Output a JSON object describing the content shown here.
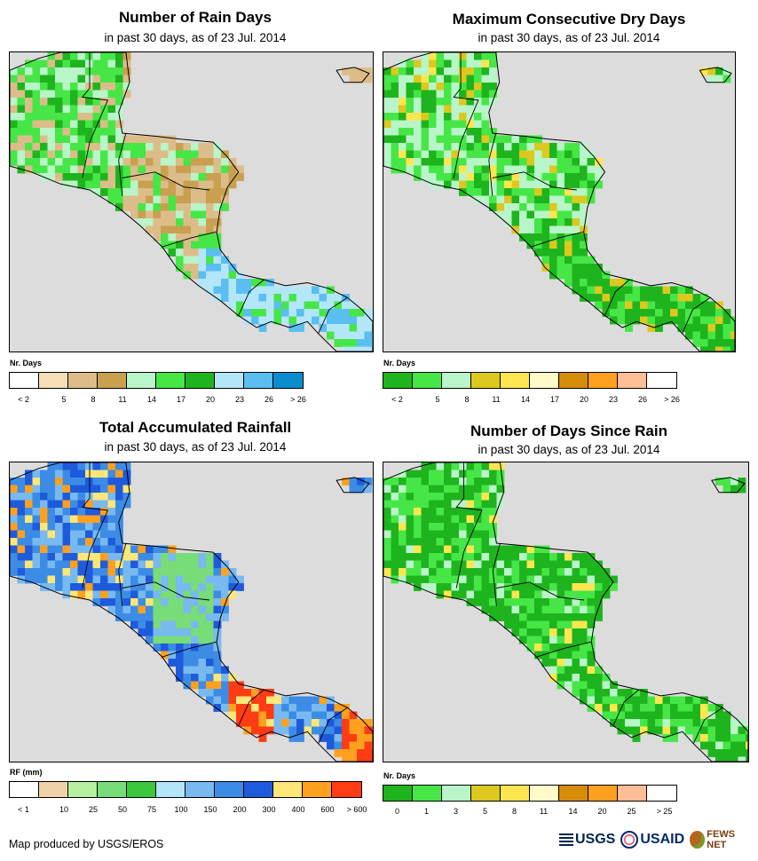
{
  "panels": [
    {
      "id": "rain_days",
      "title": "Number of Rain Days",
      "subtitle": "in past 30 days, as of 23 Jul. 2014",
      "legend_title": "Nr. Days",
      "legend_colors": [
        "#ffffff",
        "#f5deb8",
        "#dcbd8a",
        "#c8a050",
        "#b8f5c8",
        "#46e646",
        "#1eb41e",
        "#b4e6fa",
        "#5abef0",
        "#0a8ccd"
      ],
      "legend_labels": [
        "< 2",
        "5",
        "8",
        "11",
        "14",
        "17",
        "20",
        "23",
        "26",
        "> 26"
      ],
      "map_palette": [
        "#46e646",
        "#1eb41e",
        "#b8f5c8",
        "#c8a050",
        "#dcbd8a",
        "#b4e6fa",
        "#5abef0"
      ]
    },
    {
      "id": "dry_days",
      "title": "Maximum Consecutive Dry Days",
      "subtitle": "in past 30 days, as of 23 Jul. 2014",
      "legend_title": "Nr. Days",
      "legend_colors": [
        "#1eb41e",
        "#46e646",
        "#b8f5c8",
        "#dcc81e",
        "#ffe650",
        "#fffac8",
        "#d78c0a",
        "#ffa01e",
        "#ffbe96",
        "#ffffff"
      ],
      "legend_labels": [
        "< 2",
        "5",
        "8",
        "11",
        "14",
        "17",
        "20",
        "23",
        "26",
        "> 26"
      ],
      "map_palette": [
        "#46e646",
        "#1eb41e",
        "#b8f5c8",
        "#dcc81e",
        "#ffe650"
      ]
    },
    {
      "id": "rainfall",
      "title": "Total Accumulated Rainfall",
      "subtitle": "in past 30 days, as of 23 Jul. 2014",
      "legend_title": "RF (mm)",
      "legend_colors": [
        "#ffffff",
        "#f0d2aa",
        "#b4f0a0",
        "#78dc78",
        "#3cc83c",
        "#b4e6fa",
        "#78b9f0",
        "#3c8ce6",
        "#1e5adc",
        "#ffe678",
        "#ffa01e",
        "#ff3c14"
      ],
      "legend_labels": [
        "< 1",
        "10",
        "25",
        "50",
        "75",
        "100",
        "150",
        "200",
        "300",
        "400",
        "600",
        "> 600"
      ],
      "map_palette": [
        "#3c8ce6",
        "#78b9f0",
        "#1e5adc",
        "#78dc78",
        "#ffe678",
        "#ffa01e",
        "#ff3c14"
      ]
    },
    {
      "id": "since_rain",
      "title": "Number of Days Since Rain",
      "subtitle": "in past 30 days, as of 23 Jul. 2014",
      "legend_title": "Nr. Days",
      "legend_colors": [
        "#1eb41e",
        "#46e646",
        "#b8f5c8",
        "#dcc81e",
        "#ffe650",
        "#fffac8",
        "#d78c0a",
        "#ffa01e",
        "#ffbe96",
        "#ffffff"
      ],
      "legend_labels": [
        "0",
        "1",
        "3",
        "5",
        "8",
        "11",
        "14",
        "20",
        "25",
        "> 25"
      ],
      "map_palette": [
        "#1eb41e",
        "#46e646",
        "#b8f5c8",
        "#ffe650"
      ]
    }
  ],
  "footer": "Map produced by USGS/EROS",
  "logos": {
    "usgs": "USGS",
    "usaid": "USAID",
    "fews": "FEWS NET"
  }
}
